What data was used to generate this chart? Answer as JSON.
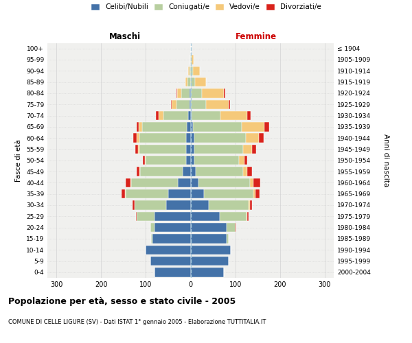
{
  "age_groups": [
    "0-4",
    "5-9",
    "10-14",
    "15-19",
    "20-24",
    "25-29",
    "30-34",
    "35-39",
    "40-44",
    "45-49",
    "50-54",
    "55-59",
    "60-64",
    "65-69",
    "70-74",
    "75-79",
    "80-84",
    "85-89",
    "90-94",
    "95-99",
    "100+"
  ],
  "anni_nascita": [
    "2000-2004",
    "1995-1999",
    "1990-1994",
    "1985-1989",
    "1980-1984",
    "1975-1979",
    "1970-1974",
    "1965-1969",
    "1960-1964",
    "1955-1959",
    "1950-1954",
    "1945-1949",
    "1940-1944",
    "1935-1939",
    "1930-1934",
    "1925-1929",
    "1920-1924",
    "1915-1919",
    "1910-1914",
    "1905-1909",
    "≤ 1904"
  ],
  "maschi": {
    "celibi": [
      80,
      90,
      100,
      85,
      80,
      80,
      55,
      50,
      28,
      18,
      10,
      10,
      10,
      8,
      5,
      2,
      2,
      0,
      0,
      0,
      0
    ],
    "coniugati": [
      0,
      0,
      0,
      3,
      10,
      40,
      70,
      95,
      105,
      95,
      90,
      105,
      105,
      100,
      55,
      30,
      18,
      7,
      3,
      1,
      0
    ],
    "vedovi": [
      0,
      0,
      0,
      0,
      0,
      0,
      0,
      1,
      2,
      2,
      2,
      3,
      5,
      8,
      12,
      10,
      10,
      5,
      2,
      0,
      0
    ],
    "divorziati": [
      0,
      0,
      0,
      0,
      0,
      2,
      5,
      8,
      10,
      5,
      5,
      5,
      8,
      5,
      5,
      2,
      2,
      0,
      0,
      0,
      0
    ]
  },
  "femmine": {
    "nubili": [
      75,
      85,
      90,
      80,
      80,
      65,
      40,
      30,
      18,
      12,
      8,
      8,
      8,
      5,
      2,
      0,
      0,
      0,
      0,
      0,
      0
    ],
    "coniugate": [
      0,
      0,
      0,
      5,
      20,
      60,
      90,
      110,
      115,
      105,
      100,
      110,
      115,
      110,
      65,
      35,
      25,
      10,
      5,
      2,
      0
    ],
    "vedove": [
      0,
      0,
      0,
      0,
      0,
      2,
      3,
      5,
      8,
      10,
      12,
      20,
      30,
      50,
      60,
      50,
      50,
      25,
      15,
      5,
      0
    ],
    "divorziate": [
      0,
      0,
      0,
      0,
      2,
      3,
      5,
      10,
      15,
      10,
      6,
      8,
      10,
      10,
      8,
      3,
      2,
      0,
      0,
      0,
      0
    ]
  },
  "colors": {
    "celibi": "#4472a8",
    "coniugati": "#b8cfa0",
    "vedovi": "#f5c97a",
    "divorziati": "#d9231c"
  },
  "xlim": 320,
  "title": "Popolazione per età, sesso e stato civile - 2005",
  "subtitle": "COMUNE DI CELLE LIGURE (SV) - Dati ISTAT 1° gennaio 2005 - Elaborazione TUTTITALIA.IT",
  "ylabel_left": "Fasce di età",
  "ylabel_right": "Anni di nascita",
  "xlabel_maschi": "Maschi",
  "xlabel_femmine": "Femmine",
  "bg_color": "#f0f0ee"
}
